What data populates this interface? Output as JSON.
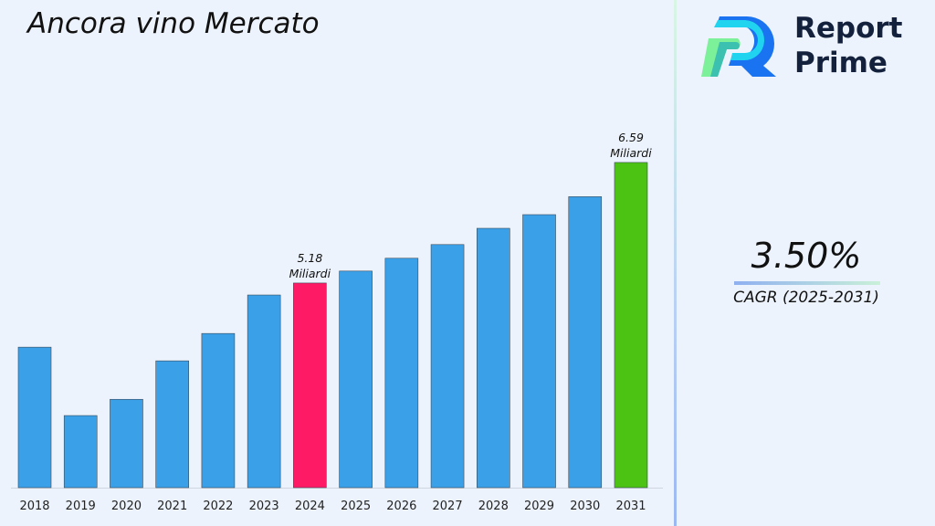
{
  "title": "Ancora vino Mercato",
  "logo": {
    "line1": "Report",
    "line2": "Prime"
  },
  "cagr": {
    "value": "3.50%",
    "label": "CAGR (2025-2031)"
  },
  "colors": {
    "default_bar": "#3aa0e8",
    "highlight_2024": "#ff1a66",
    "highlight_2031": "#4cc212",
    "background": "#edf3fc"
  },
  "chart_data": {
    "type": "bar",
    "title": "Ancora vino Mercato",
    "xlabel": "",
    "ylabel": "",
    "grid": false,
    "categories": [
      "2018",
      "2019",
      "2020",
      "2021",
      "2022",
      "2023",
      "2024",
      "2025",
      "2026",
      "2027",
      "2028",
      "2029",
      "2030",
      "2031"
    ],
    "values": [
      4.43,
      3.63,
      3.82,
      4.27,
      4.59,
      5.04,
      5.18,
      5.32,
      5.47,
      5.63,
      5.82,
      5.98,
      6.19,
      6.59
    ],
    "data_labels": [
      {
        "category": "2024",
        "line1": "5.18",
        "line2": "Miliardi"
      },
      {
        "category": "2031",
        "line1": "6.59",
        "line2": "Miliardi"
      }
    ]
  }
}
